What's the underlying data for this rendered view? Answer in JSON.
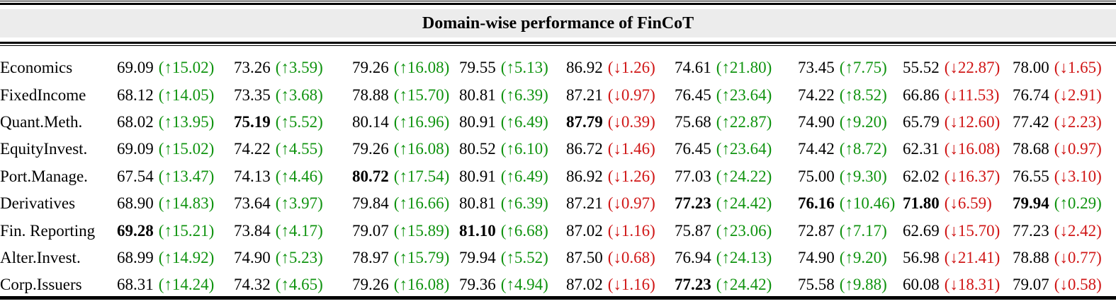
{
  "title": "Domain-wise performance of FinCoT",
  "colors": {
    "up": "#0f930f",
    "down": "#d01616",
    "text": "#000000",
    "band": "#ececec",
    "rule": "#000000"
  },
  "arrows": {
    "up": "↑",
    "down": "↓"
  },
  "chart_data": {
    "type": "table",
    "title": "Domain-wise performance of FinCoT",
    "row_labels": [
      "Economics",
      "FixedIncome",
      "Quant.Meth.",
      "EquityInvest.",
      "Port.Manage.",
      "Derivatives",
      "Fin. Reporting",
      "Alter.Invest.",
      "Corp.Issuers"
    ],
    "note": "Each cell = score (arrow delta); up deltas green, down deltas red; bold marks column-best scores"
  },
  "table": {
    "rows": [
      {
        "label": "Economics",
        "cells": [
          {
            "value": "69.09",
            "delta": "15.02",
            "dir": "up",
            "bold": false
          },
          {
            "value": "73.26",
            "delta": "3.59",
            "dir": "up",
            "bold": false
          },
          {
            "value": "79.26",
            "delta": "16.08",
            "dir": "up",
            "bold": false
          },
          {
            "value": "79.55",
            "delta": "5.13",
            "dir": "up",
            "bold": false
          },
          {
            "value": "86.92",
            "delta": "1.26",
            "dir": "down",
            "bold": false
          },
          {
            "value": "74.61",
            "delta": "21.80",
            "dir": "up",
            "bold": false
          },
          {
            "value": "73.45",
            "delta": "7.75",
            "dir": "up",
            "bold": false
          },
          {
            "value": "55.52",
            "delta": "22.87",
            "dir": "down",
            "bold": false
          },
          {
            "value": "78.00",
            "delta": "1.65",
            "dir": "down",
            "bold": false
          }
        ]
      },
      {
        "label": "FixedIncome",
        "cells": [
          {
            "value": "68.12",
            "delta": "14.05",
            "dir": "up",
            "bold": false
          },
          {
            "value": "73.35",
            "delta": "3.68",
            "dir": "up",
            "bold": false
          },
          {
            "value": "78.88",
            "delta": "15.70",
            "dir": "up",
            "bold": false
          },
          {
            "value": "80.81",
            "delta": "6.39",
            "dir": "up",
            "bold": false
          },
          {
            "value": "87.21",
            "delta": "0.97",
            "dir": "down",
            "bold": false
          },
          {
            "value": "76.45",
            "delta": "23.64",
            "dir": "up",
            "bold": false
          },
          {
            "value": "74.22",
            "delta": "8.52",
            "dir": "up",
            "bold": false
          },
          {
            "value": "66.86",
            "delta": "11.53",
            "dir": "down",
            "bold": false
          },
          {
            "value": "76.74",
            "delta": "2.91",
            "dir": "down",
            "bold": false
          }
        ]
      },
      {
        "label": "Quant.Meth.",
        "cells": [
          {
            "value": "68.02",
            "delta": "13.95",
            "dir": "up",
            "bold": false
          },
          {
            "value": "75.19",
            "delta": "5.52",
            "dir": "up",
            "bold": true
          },
          {
            "value": "80.14",
            "delta": "16.96",
            "dir": "up",
            "bold": false
          },
          {
            "value": "80.91",
            "delta": "6.49",
            "dir": "up",
            "bold": false
          },
          {
            "value": "87.79",
            "delta": "0.39",
            "dir": "down",
            "bold": true
          },
          {
            "value": "75.68",
            "delta": "22.87",
            "dir": "up",
            "bold": false
          },
          {
            "value": "74.90",
            "delta": "9.20",
            "dir": "up",
            "bold": false
          },
          {
            "value": "65.79",
            "delta": "12.60",
            "dir": "down",
            "bold": false
          },
          {
            "value": "77.42",
            "delta": "2.23",
            "dir": "down",
            "bold": false
          }
        ]
      },
      {
        "label": "EquityInvest.",
        "cells": [
          {
            "value": "69.09",
            "delta": "15.02",
            "dir": "up",
            "bold": false
          },
          {
            "value": "74.22",
            "delta": "4.55",
            "dir": "up",
            "bold": false
          },
          {
            "value": "79.26",
            "delta": "16.08",
            "dir": "up",
            "bold": false
          },
          {
            "value": "80.52",
            "delta": "6.10",
            "dir": "up",
            "bold": false
          },
          {
            "value": "86.72",
            "delta": "1.46",
            "dir": "down",
            "bold": false
          },
          {
            "value": "76.45",
            "delta": "23.64",
            "dir": "up",
            "bold": false
          },
          {
            "value": "74.42",
            "delta": "8.72",
            "dir": "up",
            "bold": false
          },
          {
            "value": "62.31",
            "delta": "16.08",
            "dir": "down",
            "bold": false
          },
          {
            "value": "78.68",
            "delta": "0.97",
            "dir": "down",
            "bold": false
          }
        ]
      },
      {
        "label": "Port.Manage.",
        "cells": [
          {
            "value": "67.54",
            "delta": "13.47",
            "dir": "up",
            "bold": false
          },
          {
            "value": "74.13",
            "delta": "4.46",
            "dir": "up",
            "bold": false
          },
          {
            "value": "80.72",
            "delta": "17.54",
            "dir": "up",
            "bold": true
          },
          {
            "value": "80.91",
            "delta": "6.49",
            "dir": "up",
            "bold": false
          },
          {
            "value": "86.92",
            "delta": "1.26",
            "dir": "down",
            "bold": false
          },
          {
            "value": "77.03",
            "delta": "24.22",
            "dir": "up",
            "bold": false
          },
          {
            "value": "75.00",
            "delta": "9.30",
            "dir": "up",
            "bold": false
          },
          {
            "value": "62.02",
            "delta": "16.37",
            "dir": "down",
            "bold": false
          },
          {
            "value": "76.55",
            "delta": "3.10",
            "dir": "down",
            "bold": false
          }
        ]
      },
      {
        "label": "Derivatives",
        "cells": [
          {
            "value": "68.90",
            "delta": "14.83",
            "dir": "up",
            "bold": false
          },
          {
            "value": "73.64",
            "delta": "3.97",
            "dir": "up",
            "bold": false
          },
          {
            "value": "79.84",
            "delta": "16.66",
            "dir": "up",
            "bold": false
          },
          {
            "value": "80.81",
            "delta": "6.39",
            "dir": "up",
            "bold": false
          },
          {
            "value": "87.21",
            "delta": "0.97",
            "dir": "down",
            "bold": false
          },
          {
            "value": "77.23",
            "delta": "24.42",
            "dir": "up",
            "bold": true
          },
          {
            "value": "76.16",
            "delta": "10.46",
            "dir": "up",
            "bold": true
          },
          {
            "value": "71.80",
            "delta": "6.59",
            "dir": "down",
            "bold": true
          },
          {
            "value": "79.94",
            "delta": "0.29",
            "dir": "up",
            "bold": true
          }
        ]
      },
      {
        "label": "Fin. Reporting",
        "cells": [
          {
            "value": "69.28",
            "delta": "15.21",
            "dir": "up",
            "bold": true
          },
          {
            "value": "73.84",
            "delta": "4.17",
            "dir": "up",
            "bold": false
          },
          {
            "value": "79.07",
            "delta": "15.89",
            "dir": "up",
            "bold": false
          },
          {
            "value": "81.10",
            "delta": "6.68",
            "dir": "up",
            "bold": true
          },
          {
            "value": "87.02",
            "delta": "1.16",
            "dir": "down",
            "bold": false
          },
          {
            "value": "75.87",
            "delta": "23.06",
            "dir": "up",
            "bold": false
          },
          {
            "value": "72.87",
            "delta": "7.17",
            "dir": "up",
            "bold": false
          },
          {
            "value": "62.69",
            "delta": "15.70",
            "dir": "down",
            "bold": false
          },
          {
            "value": "77.23",
            "delta": "2.42",
            "dir": "down",
            "bold": false
          }
        ]
      },
      {
        "label": "Alter.Invest.",
        "cells": [
          {
            "value": "68.99",
            "delta": "14.92",
            "dir": "up",
            "bold": false
          },
          {
            "value": "74.90",
            "delta": "5.23",
            "dir": "up",
            "bold": false
          },
          {
            "value": "78.97",
            "delta": "15.79",
            "dir": "up",
            "bold": false
          },
          {
            "value": "79.94",
            "delta": "5.52",
            "dir": "up",
            "bold": false
          },
          {
            "value": "87.50",
            "delta": "0.68",
            "dir": "down",
            "bold": false
          },
          {
            "value": "76.94",
            "delta": "24.13",
            "dir": "up",
            "bold": false
          },
          {
            "value": "74.90",
            "delta": "9.20",
            "dir": "up",
            "bold": false
          },
          {
            "value": "56.98",
            "delta": "21.41",
            "dir": "down",
            "bold": false
          },
          {
            "value": "78.88",
            "delta": "0.77",
            "dir": "down",
            "bold": false
          }
        ]
      },
      {
        "label": "Corp.Issuers",
        "cells": [
          {
            "value": "68.31",
            "delta": "14.24",
            "dir": "up",
            "bold": false
          },
          {
            "value": "74.32",
            "delta": "4.65",
            "dir": "up",
            "bold": false
          },
          {
            "value": "79.26",
            "delta": "16.08",
            "dir": "up",
            "bold": false
          },
          {
            "value": "79.36",
            "delta": "4.94",
            "dir": "up",
            "bold": false
          },
          {
            "value": "87.02",
            "delta": "1.16",
            "dir": "down",
            "bold": false
          },
          {
            "value": "77.23",
            "delta": "24.42",
            "dir": "up",
            "bold": true
          },
          {
            "value": "75.58",
            "delta": "9.88",
            "dir": "up",
            "bold": false
          },
          {
            "value": "60.08",
            "delta": "18.31",
            "dir": "down",
            "bold": false
          },
          {
            "value": "79.07",
            "delta": "0.58",
            "dir": "down",
            "bold": false
          }
        ]
      }
    ]
  }
}
